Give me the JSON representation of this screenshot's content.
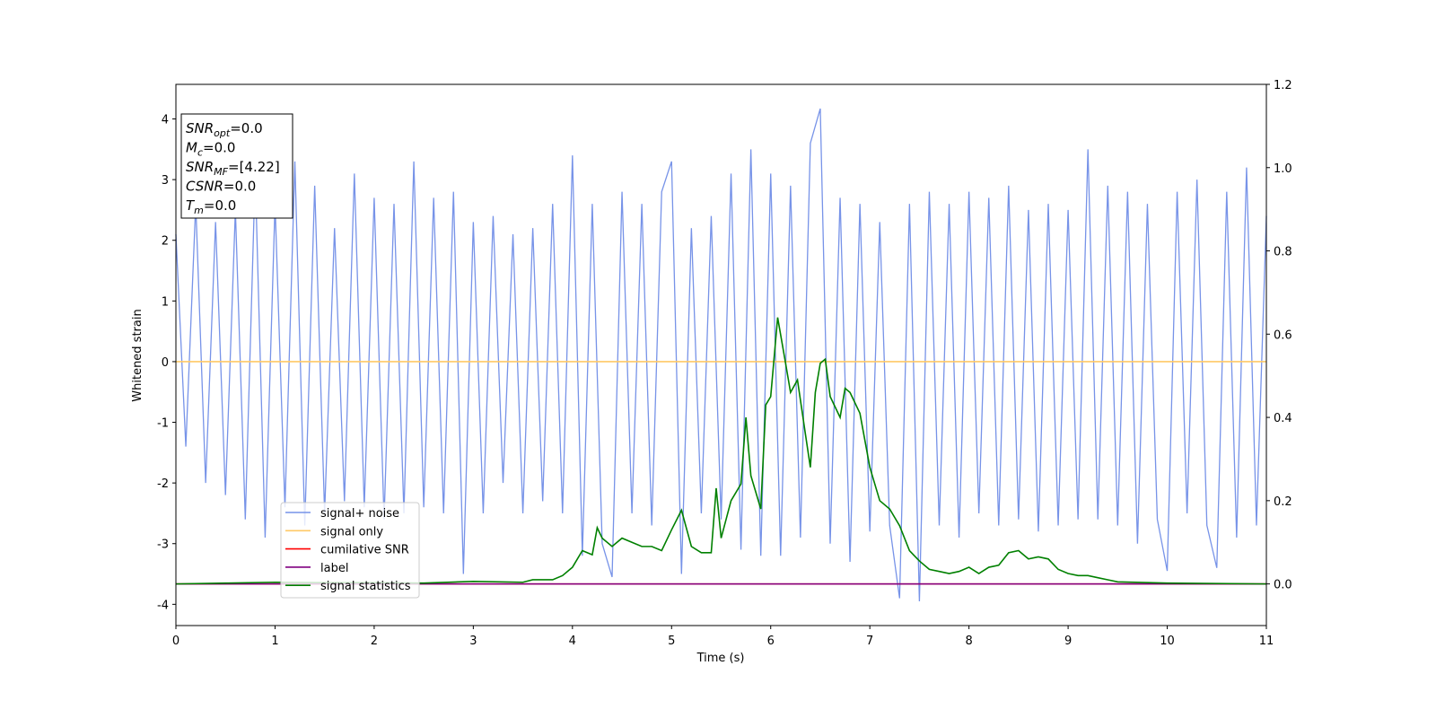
{
  "chart_data": {
    "type": "line",
    "x_label": "Time (s)",
    "y_label": "Whitened strain",
    "xlim": [
      0,
      11
    ],
    "xticks": [
      0,
      1,
      2,
      3,
      4,
      5,
      6,
      7,
      8,
      9,
      10,
      11
    ],
    "ylim": [
      -4.35,
      4.57
    ],
    "yticks": [
      -4,
      -3,
      -2,
      -1,
      0,
      1,
      2,
      3,
      4
    ],
    "y2lim": [
      -0.1,
      1.2
    ],
    "y2ticks": [
      {
        "value": 0,
        "label": "0.0"
      },
      0.2,
      0.4,
      0.6,
      0.8,
      {
        "value": 1,
        "label": "1.0"
      },
      1.2
    ],
    "annotations": [
      {
        "symbol": "SNR",
        "subscript": "opt",
        "text": "=0.0"
      },
      {
        "symbol": "M",
        "subscript": "c",
        "text": "=0.0"
      },
      {
        "symbol": "SNR",
        "subscript": "MF",
        "text": "=[4.22]"
      },
      {
        "symbol": "CSNR",
        "subscript": null,
        "text": "=0.0"
      },
      {
        "symbol": "T",
        "subscript": "m",
        "text": "=0.0"
      }
    ],
    "series": [
      {
        "name": "signal+ noise",
        "color": "#7793e8",
        "x": [
          0,
          0.1,
          0.2,
          0.3,
          0.4,
          0.5,
          0.6,
          0.7,
          0.8,
          0.9,
          1,
          1.1,
          1.2,
          1.3,
          1.4,
          1.5,
          1.6,
          1.7,
          1.8,
          1.9,
          2,
          2.1,
          2.2,
          2.3,
          2.4,
          2.5,
          2.6,
          2.7,
          2.8,
          2.9,
          3,
          3.1,
          3.2,
          3.3,
          3.4,
          3.5,
          3.6,
          3.7,
          3.8,
          3.9,
          4,
          4.1,
          4.2,
          4.3,
          4.4,
          4.5,
          4.6,
          4.7,
          4.8,
          4.9,
          5,
          5.1,
          5.2,
          5.3,
          5.4,
          5.5,
          5.6,
          5.7,
          5.8,
          5.9,
          6,
          6.1,
          6.2,
          6.3,
          6.4,
          6.5,
          6.6,
          6.7,
          6.8,
          6.9,
          7,
          7.1,
          7.2,
          7.3,
          7.4,
          7.5,
          7.6,
          7.7,
          7.8,
          7.9,
          8,
          8.1,
          8.2,
          8.3,
          8.4,
          8.5,
          8.6,
          8.7,
          8.8,
          8.9,
          9,
          9.1,
          9.2,
          9.3,
          9.4,
          9.5,
          9.6,
          9.7,
          9.8,
          9.9,
          10,
          10.1,
          10.2,
          10.3,
          10.4,
          10.5,
          10.6,
          10.7,
          10.8,
          10.9,
          11
        ],
        "values": [
          2.1,
          -1.4,
          2.6,
          -2.0,
          2.3,
          -2.2,
          2.5,
          -2.6,
          3.1,
          -2.9,
          2.6,
          -2.4,
          3.3,
          -2.7,
          2.9,
          -2.5,
          2.2,
          -2.3,
          3.1,
          -2.4,
          2.7,
          -2.6,
          2.6,
          -2.5,
          3.3,
          -2.4,
          2.7,
          -2.5,
          2.8,
          -3.5,
          2.3,
          -2.5,
          2.4,
          -2.0,
          2.1,
          -2.5,
          2.2,
          -2.3,
          2.6,
          -2.5,
          3.4,
          -3.2,
          2.6,
          -3.0,
          -3.55,
          2.8,
          -2.5,
          2.6,
          -2.7,
          2.8,
          3.3,
          -3.5,
          2.2,
          -2.5,
          2.4,
          -2.6,
          3.1,
          -3.1,
          3.5,
          -3.2,
          3.1,
          -3.2,
          2.9,
          -2.9,
          3.6,
          4.17,
          -3.0,
          2.7,
          -3.3,
          2.6,
          -2.8,
          2.3,
          -2.7,
          -3.9,
          2.6,
          -3.95,
          2.8,
          -2.7,
          2.6,
          -2.9,
          2.8,
          -2.5,
          2.7,
          -2.7,
          2.9,
          -2.6,
          2.5,
          -2.8,
          2.6,
          -2.7,
          2.5,
          -2.6,
          3.5,
          -2.6,
          2.9,
          -2.7,
          2.8,
          -3.0,
          2.6,
          -2.6,
          -3.45,
          2.8,
          -2.5,
          3.0,
          -2.7,
          -3.4,
          2.8,
          -2.9,
          3.2,
          -2.7,
          2.4
        ]
      },
      {
        "name": "signal only",
        "color": "#ffc966",
        "x": [
          0,
          11
        ],
        "values": [
          0,
          0
        ]
      },
      {
        "name": "cumilative SNR",
        "color": "#ff0000",
        "axis": "y2",
        "x": [
          0,
          11
        ],
        "values": [
          0,
          0
        ]
      },
      {
        "name": "label",
        "color": "#800080",
        "axis": "y2",
        "x": [
          0,
          11
        ],
        "values": [
          0,
          0
        ]
      },
      {
        "name": "signal statistics",
        "color": "#008000",
        "axis": "y2",
        "x": [
          0,
          0.5,
          1,
          1.5,
          2,
          2.5,
          3,
          3.5,
          3.6,
          3.8,
          3.9,
          4,
          4.1,
          4.2,
          4.25,
          4.3,
          4.4,
          4.5,
          4.6,
          4.7,
          4.8,
          4.9,
          5,
          5.1,
          5.2,
          5.3,
          5.4,
          5.45,
          5.5,
          5.6,
          5.7,
          5.75,
          5.8,
          5.9,
          5.95,
          6,
          6.07,
          6.15,
          6.2,
          6.27,
          6.35,
          6.4,
          6.45,
          6.5,
          6.55,
          6.6,
          6.7,
          6.75,
          6.8,
          6.9,
          7,
          7.1,
          7.2,
          7.3,
          7.4,
          7.5,
          7.6,
          7.7,
          7.8,
          7.9,
          8,
          8.1,
          8.2,
          8.3,
          8.4,
          8.5,
          8.6,
          8.7,
          8.8,
          8.9,
          9,
          9.1,
          9.2,
          9.3,
          9.4,
          9.5,
          10,
          11
        ],
        "values": [
          0,
          0.002,
          0.004,
          0.003,
          0.003,
          0.002,
          0.006,
          0.004,
          0.01,
          0.01,
          0.02,
          0.04,
          0.08,
          0.07,
          0.135,
          0.11,
          0.09,
          0.11,
          0.1,
          0.09,
          0.09,
          0.08,
          0.13,
          0.177,
          0.09,
          0.075,
          0.075,
          0.23,
          0.11,
          0.2,
          0.24,
          0.4,
          0.26,
          0.18,
          0.43,
          0.45,
          0.64,
          0.53,
          0.46,
          0.49,
          0.36,
          0.28,
          0.46,
          0.53,
          0.54,
          0.45,
          0.4,
          0.47,
          0.46,
          0.41,
          0.28,
          0.2,
          0.18,
          0.14,
          0.08,
          0.055,
          0.035,
          0.03,
          0.025,
          0.03,
          0.04,
          0.025,
          0.04,
          0.045,
          0.075,
          0.08,
          0.06,
          0.065,
          0.06,
          0.035,
          0.025,
          0.02,
          0.02,
          0.015,
          0.01,
          0.005,
          0.002,
          0
        ]
      }
    ]
  }
}
